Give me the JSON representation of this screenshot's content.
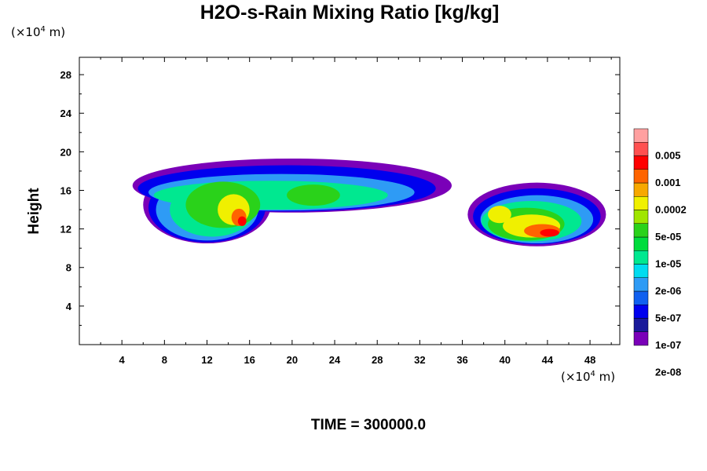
{
  "chart_data": {
    "type": "heatmap",
    "title": "H2O-s-Rain Mixing Ratio [kg/kg]",
    "ylabel": "Height",
    "xlabel": "",
    "x_unit": {
      "prefix": "(×10",
      "exp": "4",
      "suffix": " m)"
    },
    "y_unit": {
      "prefix": "(×10",
      "exp": "4",
      "suffix": " m)"
    },
    "xlim": [
      0,
      50.8
    ],
    "ylim": [
      0,
      29.8
    ],
    "x_ticks": [
      4,
      8,
      12,
      16,
      20,
      24,
      28,
      32,
      36,
      40,
      44,
      48
    ],
    "y_ticks": [
      4,
      8,
      12,
      16,
      20,
      24,
      28
    ],
    "colorbar": {
      "labels": [
        "0.005",
        "0.001",
        "0.0002",
        "5e-05",
        "1e-05",
        "2e-06",
        "5e-07",
        "1e-07",
        "2e-08"
      ],
      "colors_bottom_to_top": [
        "#7a00b8",
        "#1a1a9a",
        "#0000ee",
        "#1060f0",
        "#2e9bf5",
        "#00dcf0",
        "#00e890",
        "#00dc3c",
        "#2ad21a",
        "#a0e600",
        "#f0f000",
        "#f7a800",
        "#ff6400",
        "#ff0000",
        "#ff5050",
        "#ffa0a0"
      ]
    },
    "regions": [
      {
        "level": 0,
        "ellipses": [
          [
            20,
            16.5,
            15,
            2.8
          ],
          [
            43,
            13.5,
            6.5,
            3.3
          ],
          [
            12,
            14.5,
            6,
            4
          ]
        ]
      },
      {
        "level": 2,
        "ellipses": [
          [
            19.5,
            16.2,
            14,
            2.4
          ],
          [
            43,
            13.3,
            6,
            2.9
          ],
          [
            12,
            14.2,
            5.5,
            3.6
          ]
        ]
      },
      {
        "level": 4,
        "ellipses": [
          [
            19,
            15.8,
            12.5,
            1.9
          ],
          [
            43,
            13,
            5.3,
            2.5
          ],
          [
            12,
            14,
            4.8,
            3.2
          ]
        ]
      },
      {
        "level": 6,
        "ellipses": [
          [
            18,
            15.5,
            11,
            1.5
          ],
          [
            42.5,
            12.8,
            4.7,
            2.1
          ],
          [
            12.5,
            14,
            4,
            2.8
          ]
        ]
      },
      {
        "level": 8,
        "ellipses": [
          [
            13.5,
            14.5,
            3.5,
            2.4
          ],
          [
            42,
            12.5,
            3.6,
            1.7
          ],
          [
            22,
            15.5,
            2.5,
            1.1
          ]
        ]
      },
      {
        "level": 10,
        "ellipses": [
          [
            14.5,
            14,
            1.5,
            1.6
          ],
          [
            42.5,
            12.3,
            2.7,
            1.2
          ],
          [
            39.5,
            13.5,
            1.1,
            0.9
          ]
        ]
      },
      {
        "level": 12,
        "ellipses": [
          [
            15,
            13.2,
            0.7,
            0.9
          ],
          [
            43.5,
            11.8,
            1.7,
            0.7
          ]
        ]
      },
      {
        "level": 13,
        "ellipses": [
          [
            15.3,
            12.8,
            0.4,
            0.5
          ],
          [
            44.2,
            11.6,
            0.9,
            0.4
          ]
        ]
      }
    ],
    "time_label": "TIME = 300000.0"
  }
}
